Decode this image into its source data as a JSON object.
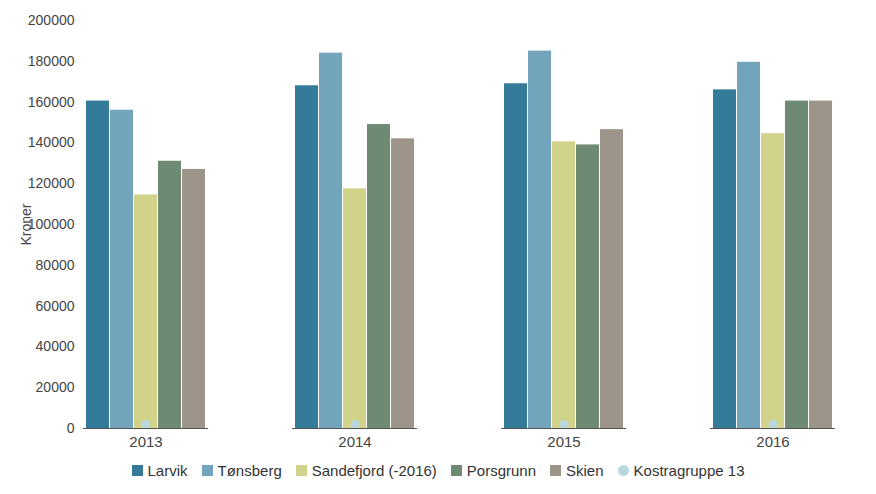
{
  "chart_data": {
    "type": "bar",
    "y_label": "Kroner",
    "categories": [
      "2013",
      "2014",
      "2015",
      "2016"
    ],
    "series": [
      {
        "name": "Larvik",
        "color": "#347a99",
        "type": "bar",
        "values": [
          160500,
          168000,
          169000,
          166000
        ]
      },
      {
        "name": "Tønsberg",
        "color": "#72a5bc",
        "type": "bar",
        "values": [
          156000,
          184000,
          185000,
          179500
        ]
      },
      {
        "name": "Sandefjord (-2016)",
        "color": "#d2d38b",
        "type": "bar",
        "values": [
          114500,
          117500,
          140500,
          144500
        ]
      },
      {
        "name": "Porsgrunn",
        "color": "#6e8a73",
        "type": "bar",
        "values": [
          131000,
          149000,
          139000,
          160500
        ]
      },
      {
        "name": "Skien",
        "color": "#9d958a",
        "type": "bar",
        "values": [
          127000,
          142000,
          146500,
          160500
        ]
      },
      {
        "name": "Kostragruppe 13",
        "color": "#b8d8dd",
        "type": "scatter",
        "marker": "circle",
        "values": [
          2000,
          2000,
          2000,
          2000
        ]
      }
    ],
    "ylim": [
      0,
      200000
    ],
    "yticks": [
      0,
      20000,
      40000,
      60000,
      80000,
      100000,
      120000,
      140000,
      160000,
      180000,
      200000
    ],
    "grid": false,
    "legend": "bottom"
  }
}
